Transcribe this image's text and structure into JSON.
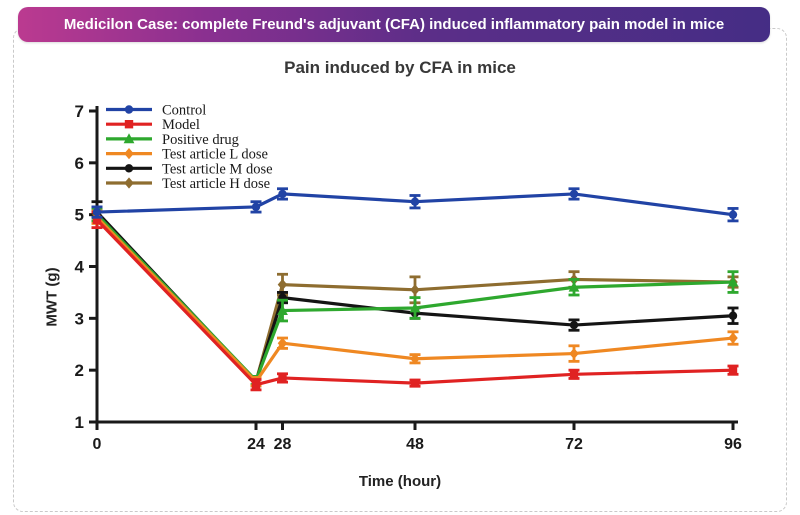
{
  "banner": {
    "text": "Medicilon Case: complete Freund's adjuvant (CFA) induced inflammatory pain model in mice",
    "gradient_left": "#bb3a90",
    "gradient_right": "#452d85"
  },
  "chart_data": {
    "type": "line",
    "title": "Pain induced by CFA in mice",
    "xlabel": "Time (hour)",
    "ylabel": "MWT (g)",
    "x": [
      0,
      24,
      28,
      48,
      72,
      96
    ],
    "x_ticks": [
      0,
      24,
      28,
      48,
      72,
      96
    ],
    "y_ticks": [
      1,
      2,
      3,
      4,
      5,
      6,
      7
    ],
    "xlim": [
      0,
      96
    ],
    "ylim": [
      1,
      7
    ],
    "grid": false,
    "legend_position": "top-left",
    "error_bars": true,
    "series": [
      {
        "name": "Control",
        "color": "#2143a5",
        "marker": "circle",
        "values": [
          5.05,
          5.15,
          5.4,
          5.25,
          5.4,
          5.0
        ],
        "errors": [
          0.1,
          0.1,
          0.1,
          0.12,
          0.1,
          0.12
        ]
      },
      {
        "name": "Model",
        "color": "#e02222",
        "marker": "square",
        "values": [
          4.9,
          1.72,
          1.85,
          1.75,
          1.92,
          2.0
        ],
        "errors": [
          0.15,
          0.1,
          0.08,
          0.06,
          0.08,
          0.08
        ]
      },
      {
        "name": "Positive drug",
        "color": "#2ea82e",
        "marker": "triangle",
        "values": [
          5.0,
          1.8,
          3.15,
          3.2,
          3.6,
          3.7
        ],
        "errors": [
          0.12,
          0.08,
          0.2,
          0.2,
          0.15,
          0.2
        ]
      },
      {
        "name": "Test article L dose",
        "color": "#ef8822",
        "marker": "diamond",
        "values": [
          4.95,
          1.78,
          2.52,
          2.22,
          2.32,
          2.62
        ],
        "errors": [
          0.12,
          0.08,
          0.1,
          0.08,
          0.15,
          0.12
        ]
      },
      {
        "name": "Test article M dose",
        "color": "#141414",
        "marker": "circle",
        "values": [
          5.05,
          1.78,
          3.4,
          3.1,
          2.87,
          3.05
        ],
        "errors": [
          0.2,
          0.08,
          0.1,
          0.1,
          0.1,
          0.15
        ]
      },
      {
        "name": "Test article H dose",
        "color": "#8e6d30",
        "marker": "diamond",
        "values": [
          5.0,
          1.78,
          3.65,
          3.55,
          3.75,
          3.7
        ],
        "errors": [
          0.15,
          0.08,
          0.2,
          0.25,
          0.15,
          0.1
        ]
      }
    ]
  }
}
